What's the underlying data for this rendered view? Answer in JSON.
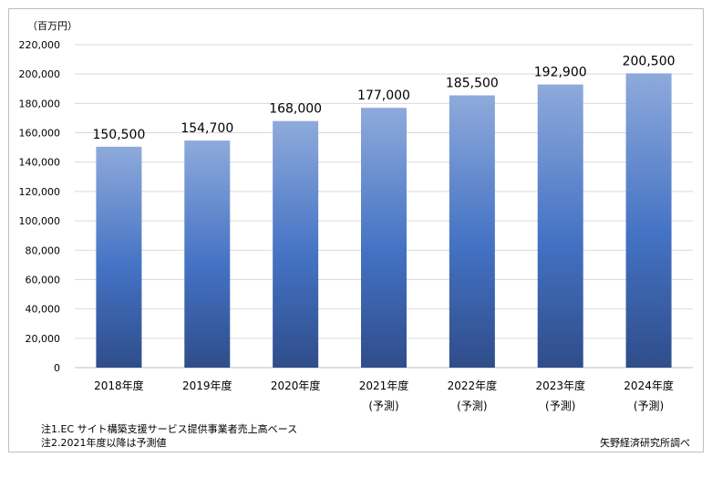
{
  "unit_label": "（百万円）",
  "notes": [
    "注1.EC サイト構築支援サービス提供事業者売上高ベース",
    "注2.2021年度以降は予測値"
  ],
  "source": "矢野経済研究所調べ",
  "colors": {
    "bar_top": "#8eaadb",
    "bar_mid": "#4472c4",
    "bar_bottom": "#2f4d8a",
    "grid": "#d9d9d9"
  },
  "chart_data": {
    "type": "bar",
    "categories": [
      [
        "2018年度"
      ],
      [
        "2019年度"
      ],
      [
        "2020年度"
      ],
      [
        "2021年度",
        "(予測)"
      ],
      [
        "2022年度",
        "(予測)"
      ],
      [
        "2023年度",
        "(予測)"
      ],
      [
        "2024年度",
        "(予測)"
      ]
    ],
    "values": [
      150500,
      154700,
      168000,
      177000,
      185500,
      192900,
      200500
    ],
    "data_labels": [
      "150,500",
      "154,700",
      "168,000",
      "177,000",
      "185,500",
      "192,900",
      "200,500"
    ],
    "yticks": [
      "0",
      "20,000",
      "40,000",
      "60,000",
      "80,000",
      "100,000",
      "120,000",
      "140,000",
      "160,000",
      "180,000",
      "200,000",
      "220,000"
    ],
    "ylim": [
      0,
      220000
    ],
    "ystep": 20000,
    "grid": true,
    "legend": "none"
  }
}
